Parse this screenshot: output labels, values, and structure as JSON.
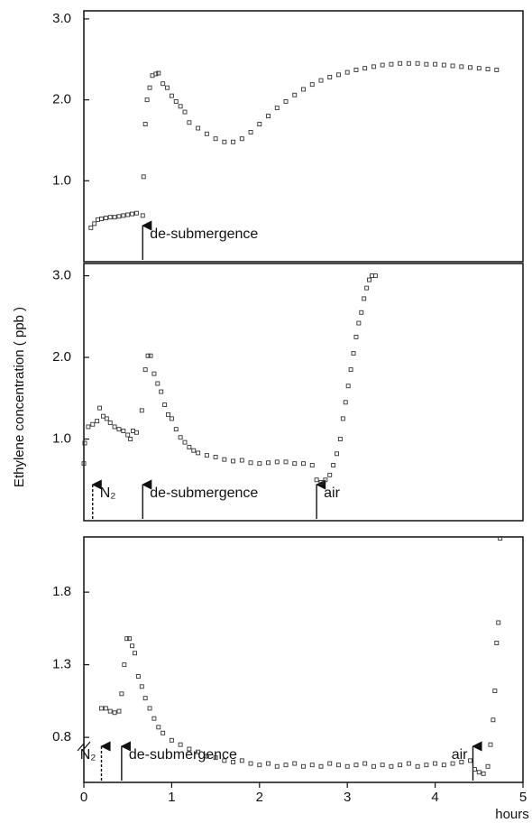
{
  "chart_data": [
    {
      "type": "scatter",
      "xlim": [
        0,
        5
      ],
      "ylim": [
        0,
        3.1
      ],
      "yticks": [
        {
          "value": 1,
          "label": "1.0"
        },
        {
          "value": 2,
          "label": "2.0"
        },
        {
          "value": 3,
          "label": "3.0"
        }
      ],
      "annotations": [
        {
          "text": "de-submergence",
          "x": 0.67,
          "dashed": false,
          "side": "right"
        }
      ],
      "series": [
        {
          "color": "#333333",
          "x": [
            0.08,
            0.12,
            0.16,
            0.2,
            0.25,
            0.3,
            0.35,
            0.4,
            0.45,
            0.5,
            0.55,
            0.6,
            0.67,
            0.68,
            0.7,
            0.72,
            0.75,
            0.78,
            0.82,
            0.85,
            0.9,
            0.95,
            1.0,
            1.05,
            1.1,
            1.15,
            1.2,
            1.3,
            1.4,
            1.5,
            1.6,
            1.7,
            1.8,
            1.9,
            2.0,
            2.1,
            2.2,
            2.3,
            2.4,
            2.5,
            2.6,
            2.7,
            2.8,
            2.9,
            3.0,
            3.1,
            3.2,
            3.3,
            3.4,
            3.5,
            3.6,
            3.7,
            3.8,
            3.9,
            4.0,
            4.1,
            4.2,
            4.3,
            4.4,
            4.5,
            4.6,
            4.7
          ],
          "values": [
            0.42,
            0.47,
            0.52,
            0.53,
            0.54,
            0.55,
            0.55,
            0.56,
            0.57,
            0.58,
            0.59,
            0.6,
            0.57,
            1.05,
            1.7,
            2.0,
            2.15,
            2.3,
            2.32,
            2.33,
            2.2,
            2.15,
            2.05,
            1.98,
            1.92,
            1.85,
            1.72,
            1.65,
            1.58,
            1.52,
            1.48,
            1.48,
            1.52,
            1.6,
            1.7,
            1.8,
            1.9,
            1.98,
            2.06,
            2.13,
            2.19,
            2.24,
            2.28,
            2.31,
            2.34,
            2.37,
            2.39,
            2.41,
            2.43,
            2.44,
            2.45,
            2.45,
            2.45,
            2.44,
            2.44,
            2.43,
            2.42,
            2.41,
            2.4,
            2.39,
            2.38,
            2.37
          ]
        }
      ]
    },
    {
      "type": "scatter",
      "xlim": [
        0,
        5
      ],
      "ylim": [
        0,
        3.15
      ],
      "ylabel": "Ethylene concentration ( ppb )",
      "yticks": [
        {
          "value": 1,
          "label": "1.0"
        },
        {
          "value": 2,
          "label": "2.0"
        },
        {
          "value": 3,
          "label": "3.0"
        }
      ],
      "annotations": [
        {
          "text": "N₂",
          "x": 0.1,
          "dashed": true,
          "side": "right"
        },
        {
          "text": "de-submergence",
          "x": 0.67,
          "dashed": false,
          "side": "right"
        },
        {
          "text": "air",
          "x": 2.65,
          "dashed": false,
          "side": "right"
        }
      ],
      "series": [
        {
          "color": "#333333",
          "x": [
            0.0,
            0.01,
            0.05,
            0.1,
            0.15,
            0.18,
            0.22,
            0.26,
            0.3,
            0.35,
            0.4,
            0.45,
            0.5,
            0.53,
            0.56,
            0.6,
            0.66,
            0.7,
            0.73,
            0.76,
            0.8,
            0.84,
            0.88,
            0.92,
            0.96,
            1.0,
            1.05,
            1.1,
            1.15,
            1.2,
            1.25,
            1.3,
            1.4,
            1.5,
            1.6,
            1.7,
            1.8,
            1.9,
            2.0,
            2.1,
            2.2,
            2.3,
            2.4,
            2.5,
            2.6,
            2.65,
            2.7,
            2.75,
            2.8,
            2.84,
            2.88,
            2.92,
            2.95,
            2.98,
            3.01,
            3.04,
            3.07,
            3.1,
            3.13,
            3.16,
            3.19,
            3.22,
            3.25,
            3.28,
            3.32
          ],
          "values": [
            0.7,
            0.95,
            1.15,
            1.18,
            1.22,
            1.38,
            1.28,
            1.25,
            1.2,
            1.15,
            1.12,
            1.1,
            1.05,
            1.0,
            1.1,
            1.08,
            1.35,
            1.85,
            2.02,
            2.02,
            1.8,
            1.68,
            1.58,
            1.42,
            1.3,
            1.25,
            1.12,
            1.02,
            0.96,
            0.9,
            0.86,
            0.83,
            0.8,
            0.78,
            0.75,
            0.73,
            0.74,
            0.71,
            0.7,
            0.71,
            0.72,
            0.72,
            0.7,
            0.7,
            0.68,
            0.5,
            0.47,
            0.5,
            0.56,
            0.68,
            0.82,
            1.0,
            1.25,
            1.45,
            1.65,
            1.85,
            2.05,
            2.25,
            2.42,
            2.55,
            2.72,
            2.85,
            2.95,
            3.0,
            3.0
          ]
        }
      ]
    },
    {
      "type": "scatter",
      "xlim": [
        0,
        5
      ],
      "ylim": [
        0.49,
        2.18
      ],
      "xlabel": "hours",
      "xticks": [
        0,
        1,
        2,
        3,
        4,
        5
      ],
      "yticks": [
        0.8,
        1.3,
        1.8
      ],
      "annotations": [
        {
          "text": "N₂",
          "x": 0.2,
          "dashed": true,
          "side": "left"
        },
        {
          "text": "de-submergence",
          "x": 0.43,
          "dashed": false,
          "side": "right"
        },
        {
          "text": "air",
          "x": 4.43,
          "dashed": false,
          "side": "left"
        }
      ],
      "series": [
        {
          "color": "#333333",
          "x": [
            0.2,
            0.25,
            0.3,
            0.35,
            0.4,
            0.43,
            0.46,
            0.49,
            0.52,
            0.55,
            0.58,
            0.62,
            0.66,
            0.7,
            0.75,
            0.8,
            0.85,
            0.9,
            1.0,
            1.1,
            1.2,
            1.3,
            1.4,
            1.5,
            1.6,
            1.7,
            1.8,
            1.9,
            2.0,
            2.1,
            2.2,
            2.3,
            2.4,
            2.5,
            2.6,
            2.7,
            2.8,
            2.9,
            3.0,
            3.1,
            3.2,
            3.3,
            3.4,
            3.5,
            3.6,
            3.7,
            3.8,
            3.9,
            4.0,
            4.1,
            4.2,
            4.3,
            4.4,
            4.45,
            4.5,
            4.55,
            4.6,
            4.63,
            4.66,
            4.68,
            4.7,
            4.72,
            4.74
          ],
          "values": [
            1.0,
            1.0,
            0.98,
            0.97,
            0.98,
            1.1,
            1.3,
            1.48,
            1.48,
            1.43,
            1.38,
            1.22,
            1.15,
            1.07,
            1.0,
            0.93,
            0.87,
            0.83,
            0.78,
            0.75,
            0.72,
            0.7,
            0.67,
            0.66,
            0.64,
            0.63,
            0.64,
            0.62,
            0.61,
            0.62,
            0.6,
            0.61,
            0.62,
            0.6,
            0.61,
            0.6,
            0.62,
            0.61,
            0.6,
            0.61,
            0.62,
            0.6,
            0.61,
            0.6,
            0.61,
            0.62,
            0.6,
            0.61,
            0.62,
            0.61,
            0.62,
            0.63,
            0.64,
            0.58,
            0.56,
            0.55,
            0.6,
            0.75,
            0.92,
            1.12,
            1.45,
            1.59,
            2.17
          ]
        }
      ]
    }
  ]
}
